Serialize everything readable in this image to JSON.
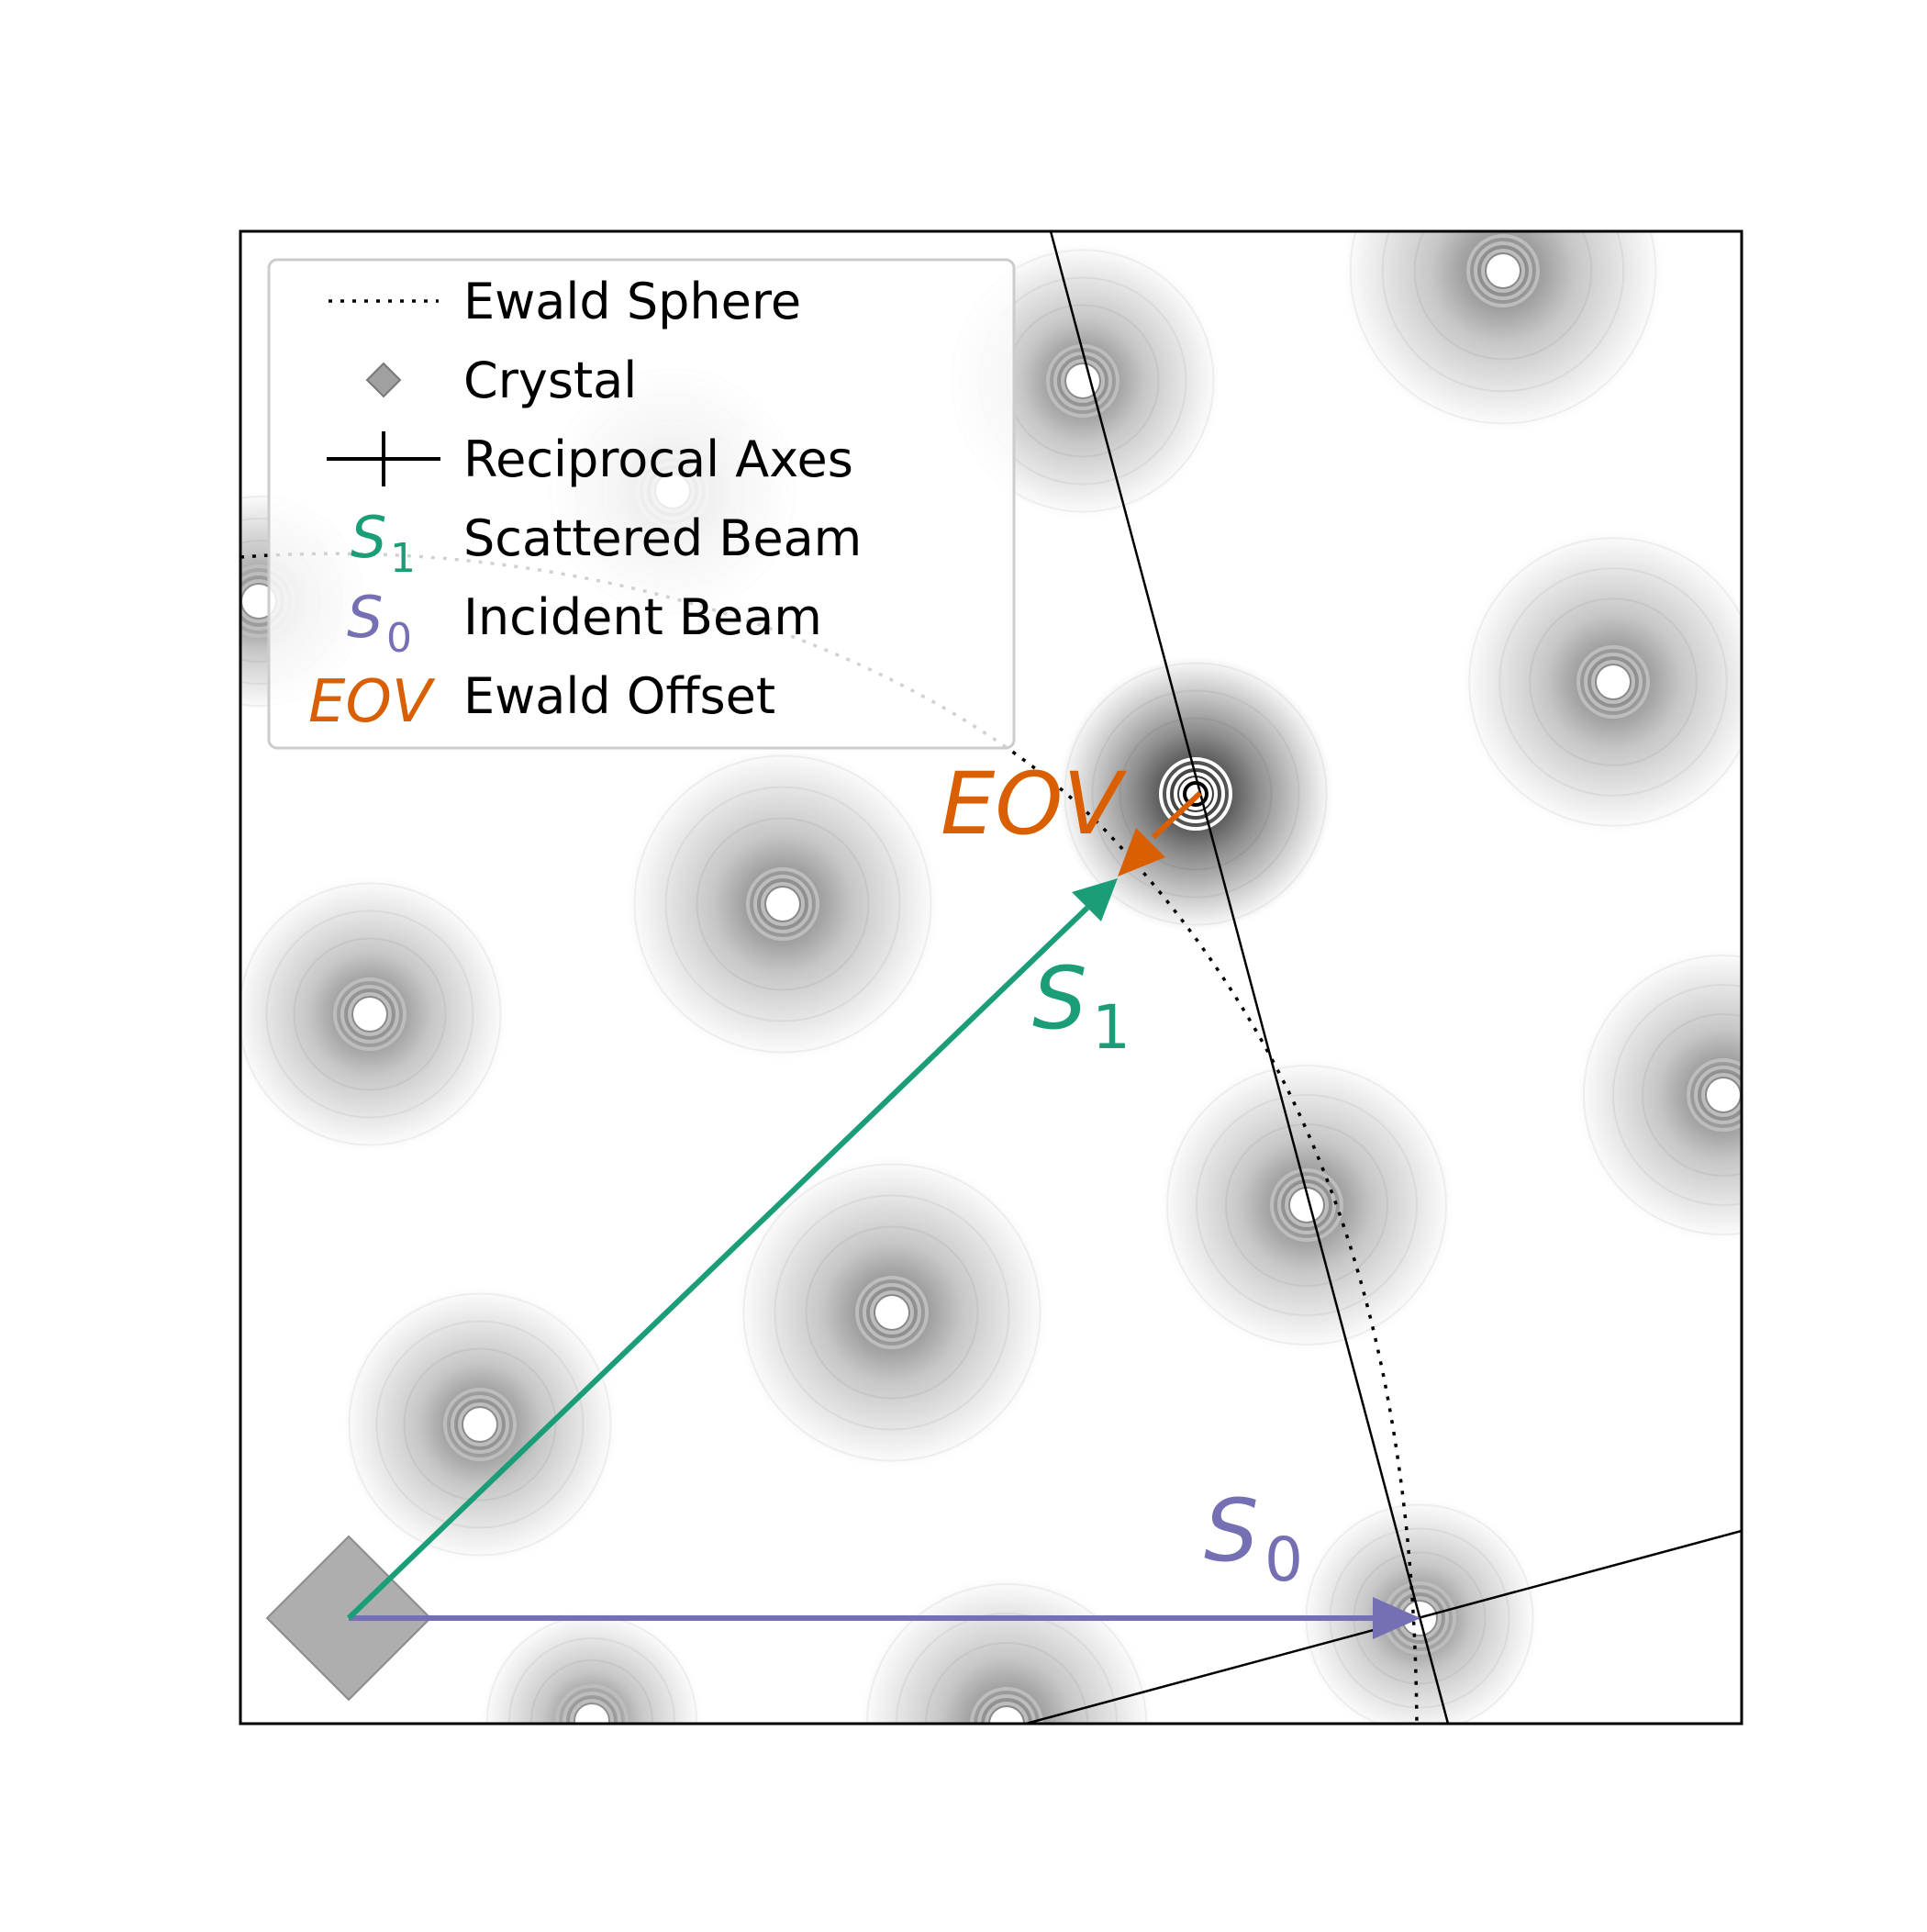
{
  "legend": {
    "entries": [
      {
        "key": "ewald",
        "label": "Ewald Sphere"
      },
      {
        "key": "crystal",
        "label": "Crystal"
      },
      {
        "key": "axes",
        "label": "Reciprocal Axes"
      },
      {
        "key": "scattered",
        "label": "Scattered Beam",
        "symbol": "S",
        "subscript": "1"
      },
      {
        "key": "incident",
        "label": "Incident Beam",
        "symbol": "S",
        "subscript": "0"
      },
      {
        "key": "offset",
        "label": "Ewald Offset",
        "symbol": "EOV"
      }
    ]
  },
  "annotations": {
    "eov": "EOV",
    "s1_symbol": "S",
    "s1_sub": "1",
    "s0_symbol": "S",
    "s0_sub": "0"
  },
  "colors": {
    "scattered": "#1b9e77",
    "incident": "#7570b3",
    "offset": "#d95f02",
    "crystal": "#a0a0a0",
    "axes": "#000000"
  }
}
